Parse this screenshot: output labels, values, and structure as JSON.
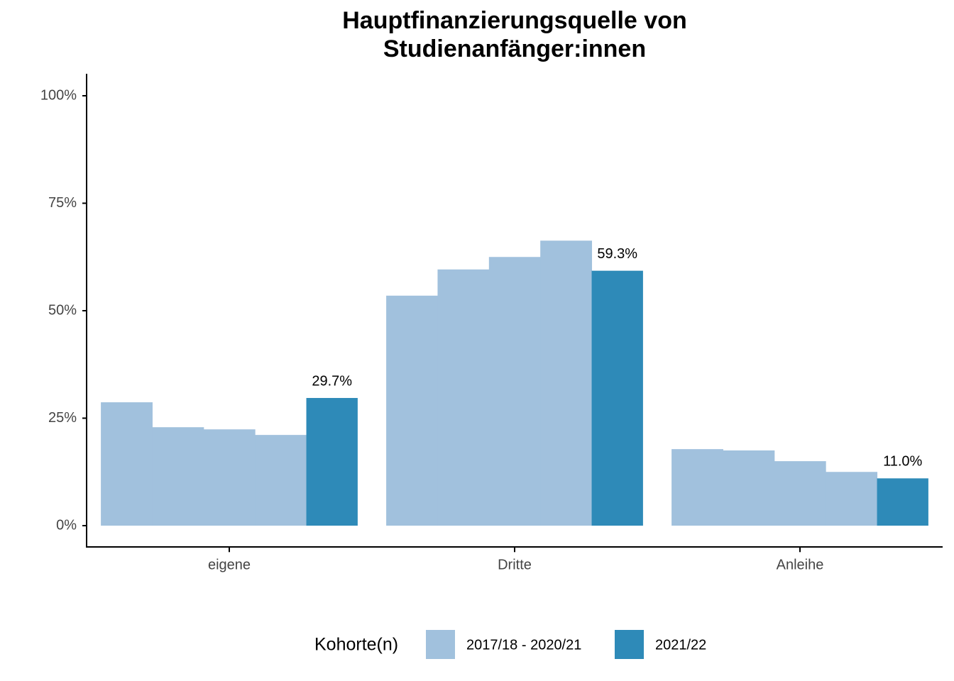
{
  "chart_data": {
    "type": "grouped-bar",
    "title": [
      "Hauptfinanzierungsquelle von",
      "Studienanfänger:innen"
    ],
    "categories": [
      "eigene",
      "Dritte",
      "Anleihe"
    ],
    "series": [
      {
        "name": "2017/18 - 2020/21",
        "color": "#a1c1dd",
        "values": [
          [
            28.7,
            22.9,
            22.4,
            21.1
          ],
          [
            53.5,
            59.6,
            62.5,
            66.3
          ],
          [
            17.8,
            17.5,
            15.0,
            12.5
          ]
        ]
      },
      {
        "name": "2021/22",
        "color": "#2e8ab8",
        "values": [
          29.7,
          59.3,
          11.0
        ],
        "value_labels": [
          "29.7%",
          "59.3%",
          "11.0%"
        ]
      }
    ],
    "legend_title": "Kohorte(n)",
    "legend": "bottom",
    "ylim": [
      -5,
      105
    ],
    "yticks": [
      {
        "value": 0,
        "label": "0%"
      },
      {
        "value": 25,
        "label": "25%"
      },
      {
        "value": 50,
        "label": "50%"
      },
      {
        "value": 75,
        "label": "75%"
      },
      {
        "value": 100,
        "label": "100%"
      }
    ],
    "grid": false
  }
}
